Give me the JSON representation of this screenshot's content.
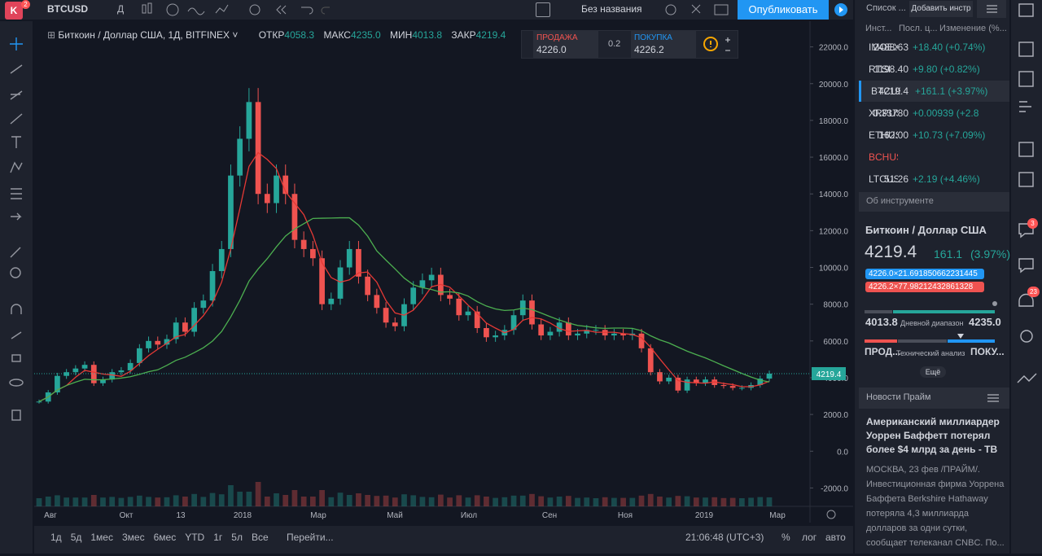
{
  "toolbar": {
    "avatar": "K",
    "avatar_badge": "2",
    "symbol": "BTCUSD",
    "interval": "Д",
    "layout_name": "Без названия",
    "publish": "Опубликовать"
  },
  "legend": {
    "title": "Биткоин / Доллар США, 1Д, BITFINEX",
    "open_label": "ОТКР",
    "open": "4058.3",
    "high_label": "МАКС",
    "high": "4235.0",
    "low_label": "МИН",
    "low": "4013.8",
    "close_label": "ЗАКР",
    "close": "4219.4"
  },
  "trade": {
    "sell_label": "ПРОДАЖА",
    "sell": "4226.0",
    "spread": "0.2",
    "buy_label": "ПОКУПКА",
    "buy": "4226.2"
  },
  "chart": {
    "type": "candlestick",
    "ylim": [
      -3000,
      23400
    ],
    "yticks": [
      {
        "value": 22000,
        "label": "22000.0"
      },
      {
        "value": 20000,
        "label": "20000.0"
      },
      {
        "value": 18000,
        "label": "18000.0"
      },
      {
        "value": 16000,
        "label": "16000.0"
      },
      {
        "value": 14000,
        "label": "14000.0"
      },
      {
        "value": 12000,
        "label": "12000.0"
      },
      {
        "value": 10000,
        "label": "10000.0"
      },
      {
        "value": 8000,
        "label": "8000.0"
      },
      {
        "value": 6000,
        "label": "6000.0"
      },
      {
        "value": 4000,
        "label": "4000.0"
      },
      {
        "value": 2000,
        "label": "2000.0"
      },
      {
        "value": 0,
        "label": "0.0"
      },
      {
        "value": -2000,
        "label": "-2000.0"
      }
    ],
    "last_price": {
      "value": 4219.4,
      "label": "4219.4"
    },
    "time_labels": [
      "Авг",
      "Окт",
      "13",
      "2018",
      "Мар",
      "Май",
      "Июл",
      "Сен",
      "Ноя",
      "2019",
      "Мар"
    ],
    "closes": [
      2700,
      3200,
      4100,
      4300,
      4500,
      4700,
      3700,
      3900,
      4300,
      4400,
      4800,
      5600,
      6000,
      5800,
      6100,
      7000,
      6500,
      7800,
      8200,
      9800,
      11000,
      15000,
      17000,
      19000,
      14000,
      13500,
      15000,
      14000,
      11500,
      11000,
      10500,
      8000,
      8300,
      10000,
      11000,
      9500,
      8500,
      7800,
      7000,
      6800,
      8000,
      8900,
      9300,
      9600,
      8500,
      8300,
      7400,
      7600,
      6700,
      6200,
      6300,
      6600,
      7400,
      8200,
      6900,
      6300,
      6500,
      7000,
      6300,
      6400,
      6600,
      6600,
      6300,
      6400,
      6300,
      6400,
      5600,
      4300,
      3800,
      4000,
      3300,
      3900,
      3700,
      3900,
      3600,
      3550,
      3450,
      3450,
      3600,
      3950,
      4219.4
    ],
    "up_color": "#26a69a",
    "down_color": "#ef5350"
  },
  "bottom": {
    "ranges": [
      "1д",
      "5д",
      "1мес",
      "3мес",
      "6мес",
      "YTD",
      "1г",
      "5л",
      "Все"
    ],
    "goto": "Перейти...",
    "time": "21:06:48 (UTC+3)",
    "percent": "%",
    "log": "лог",
    "auto": "авто"
  },
  "watchlist": {
    "title": "Список ...",
    "add": "Добавить инстр",
    "columns": [
      "Инст...",
      "Посл. ц...",
      "Изменение (%..."
    ],
    "rows": [
      {
        "symbol": "IMOEX",
        "last": "2488.63",
        "change": "+18.40 (+0.74%)"
      },
      {
        "symbol": "RTSI",
        "last": "1198.40",
        "change": "+9.80 (+0.82%)"
      },
      {
        "symbol": "BTCUSD",
        "last": "4219.4",
        "change": "+161.1 (+3.97%)"
      },
      {
        "symbol": "XRPUSD",
        "last": "0.33780",
        "change": "+0.00939 (+2.8"
      },
      {
        "symbol": "ETHUSD",
        "last": "162.00",
        "change": "+10.73 (+7.09%)"
      },
      {
        "symbol": "BCHUSD",
        "last": "",
        "change": ""
      },
      {
        "symbol": "LTCUSD",
        "last": "51.26",
        "change": "+2.19 (+4.46%)"
      }
    ]
  },
  "details": {
    "section": "Об инструменте",
    "name": "Биткоин / Доллар США",
    "price": "4219.4",
    "change": "161.1",
    "change_pct": "(3.97%)",
    "bid": "4226.0×21.691850662231445",
    "ask": "4226.2×77.98212432861328",
    "range_low": "4013.8",
    "range_label": "Дневной диапазон",
    "range_high": "4235.0",
    "sell": "ПРОД...",
    "analysis": "Технический анализ",
    "buy": "ПОКУ...",
    "more": "Ещё"
  },
  "news": {
    "section": "Новости Прайм",
    "headline": "Американский миллиардер Уоррен Баффетт потерял более $4 млрд за день - ТВ",
    "body": "МОСКВА, 23 фев /ПРАЙМ/. Инвестиционная фирма Уоррена Баффета Berkshire Hathaway потеряла 4,3 миллиарда долларов за одни сутки, сообщает телеканал CNBC. По..."
  },
  "sidebar_badges": [
    "3",
    "23"
  ]
}
